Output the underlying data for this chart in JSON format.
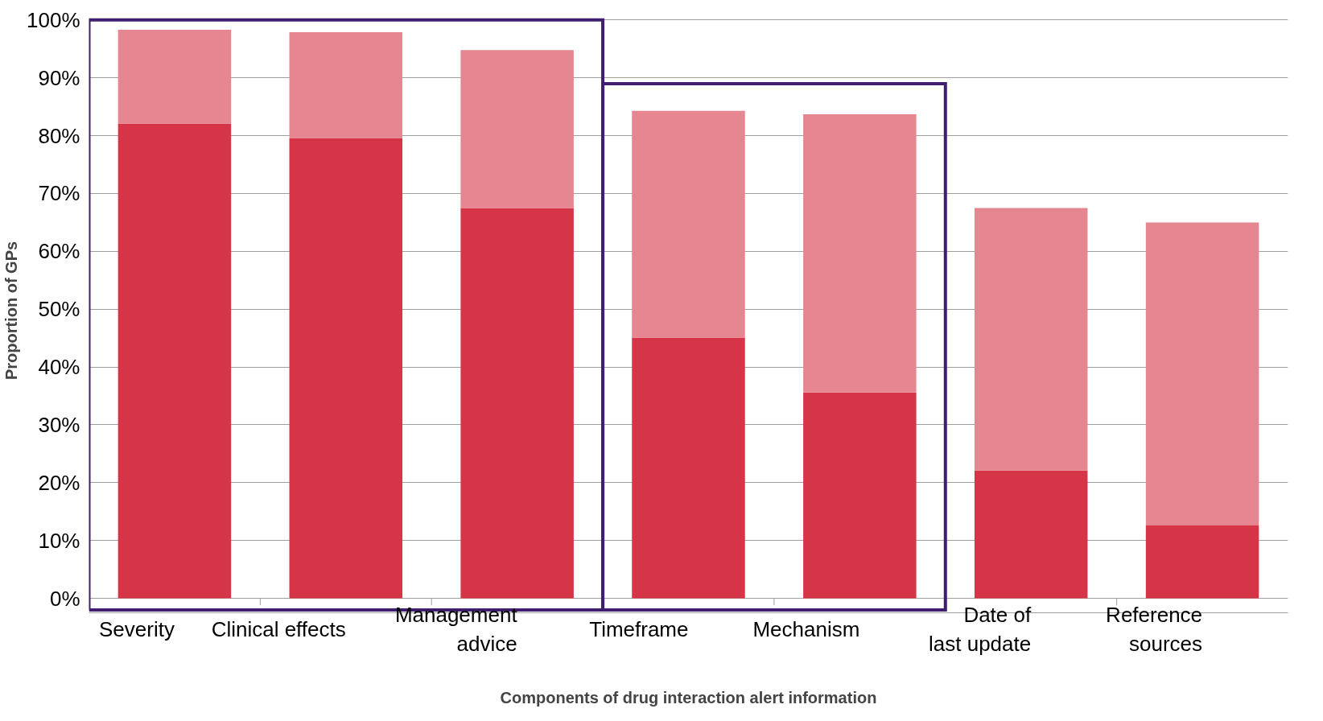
{
  "chart_data": {
    "type": "bar",
    "stacked": true,
    "xlabel": "Components of drug interaction alert information",
    "ylabel": "Proportion of GPs",
    "categories": [
      "Severity",
      "Clinical effects",
      "Management advice",
      "Timeframe",
      "Mechanism",
      "Date of last update",
      "Reference sources"
    ],
    "series": [
      {
        "color": "#d63447",
        "values": [
          82.1,
          79.6,
          67.5,
          45.1,
          35.6,
          22.1,
          12.6
        ]
      },
      {
        "color": "#e68690",
        "values": [
          16.2,
          18.3,
          27.3,
          39.2,
          48.1,
          45.4,
          52.4
        ]
      }
    ],
    "ylim": [
      0,
      100
    ],
    "yticks": [
      {
        "value": 0,
        "label": "0%"
      },
      {
        "value": 10,
        "label": "10%"
      },
      {
        "value": 20,
        "label": "20%"
      },
      {
        "value": 30,
        "label": "30%"
      },
      {
        "value": 40,
        "label": "40%"
      },
      {
        "value": 50,
        "label": "50%"
      },
      {
        "value": 60,
        "label": "60%"
      },
      {
        "value": 70,
        "label": "70%"
      },
      {
        "value": 80,
        "label": "80%"
      },
      {
        "value": 90,
        "label": "90%"
      },
      {
        "value": 100,
        "label": "100%"
      }
    ],
    "grid": "y"
  }
}
